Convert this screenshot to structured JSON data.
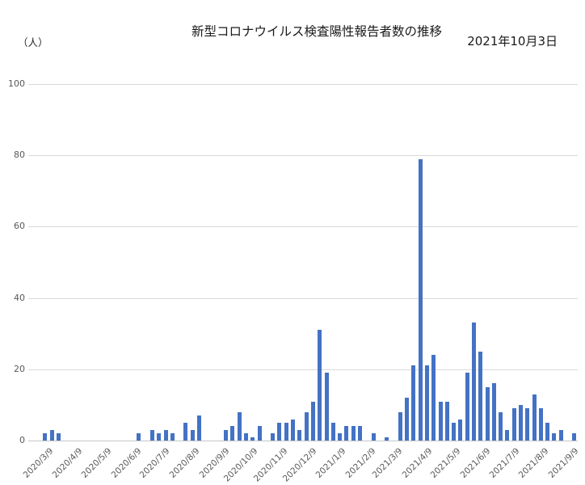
{
  "header": {
    "unit_label": "（人）",
    "title": "新型コロナウイルス検査陽性報告者数の推移",
    "date_label": "2021年10月3日"
  },
  "chart_data": {
    "type": "bar",
    "title": "新型コロナウイルス検査陽性報告者数の推移",
    "as_of_date": "2021年10月3日",
    "unit": "（人）",
    "x_interval": "weekly",
    "first_week": "2020/3/9",
    "values": [
      2,
      3,
      2,
      0,
      0,
      0,
      0,
      0,
      0,
      0,
      0,
      0,
      0,
      0,
      2,
      0,
      3,
      2,
      3,
      2,
      0,
      5,
      3,
      7,
      0,
      0,
      0,
      3,
      4,
      8,
      2,
      1,
      4,
      0,
      2,
      5,
      5,
      6,
      3,
      8,
      11,
      31,
      19,
      5,
      2,
      4,
      4,
      4,
      0,
      2,
      0,
      1,
      0,
      8,
      12,
      21,
      79,
      21,
      24,
      11,
      11,
      5,
      6,
      19,
      33,
      25,
      15,
      16,
      8,
      3,
      9,
      10,
      9,
      13,
      9,
      5,
      2,
      3,
      0,
      2
    ],
    "x_tick_labels": [
      "2020/3/9",
      "2020/4/9",
      "2020/5/9",
      "2020/6/9",
      "2020/7/9",
      "2020/8/9",
      "2020/9/9",
      "2020/10/9",
      "2020/11/9",
      "2020/12/9",
      "2021/1/9",
      "2021/2/9",
      "2021/3/9",
      "2021/4/9",
      "2021/5/9",
      "2021/6/9",
      "2021/7/9",
      "2021/8/9",
      "2021/9/9"
    ],
    "y_ticks": [
      0,
      20,
      40,
      60,
      80,
      100
    ],
    "ylim": [
      0,
      100
    ],
    "bar_color": "#4472C4",
    "grid": true,
    "legend": "none"
  }
}
